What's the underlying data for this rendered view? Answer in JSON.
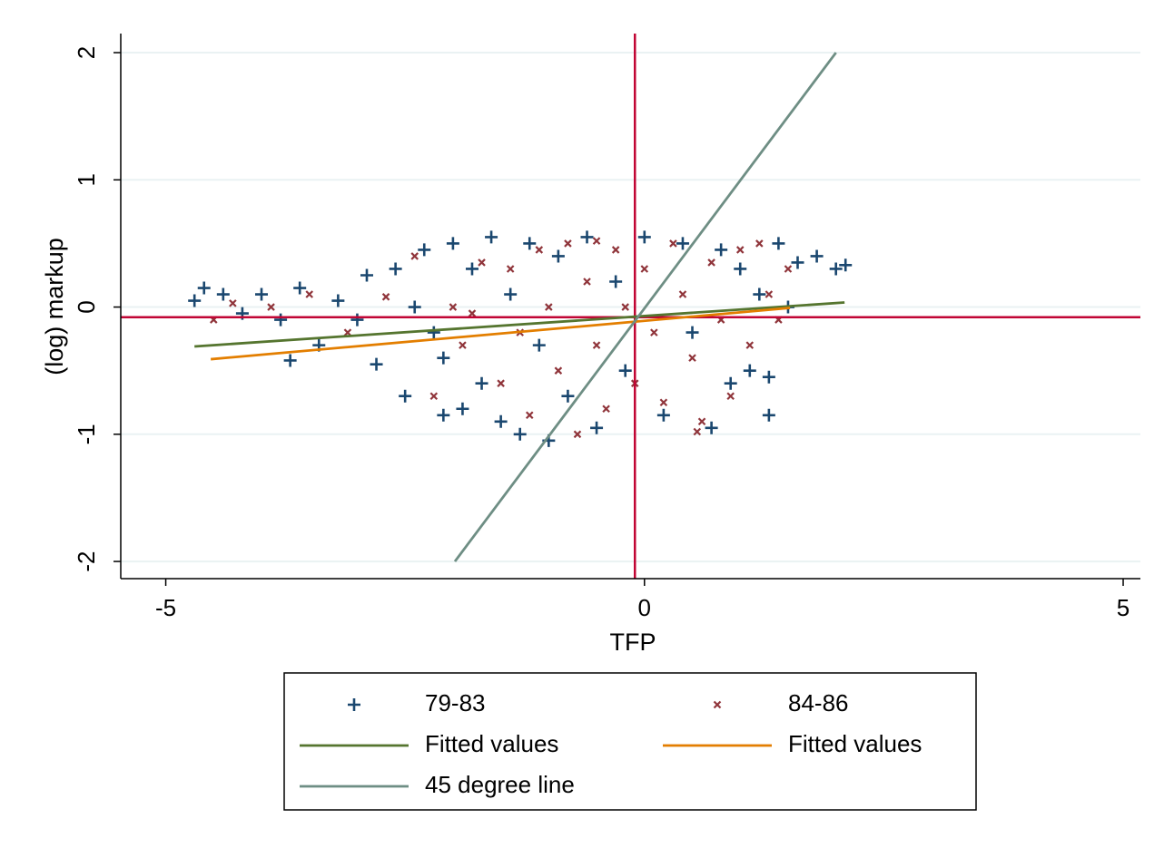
{
  "chart_data": {
    "type": "scatter",
    "x_label": "TFP",
    "y_label": "(log) markup",
    "xlim": [
      -5.47,
      5.18
    ],
    "ylim": [
      -2.135,
      2.15
    ],
    "xticks": [
      -5,
      0,
      5
    ],
    "yticks": [
      -2,
      -1,
      0,
      1,
      2
    ],
    "grid": true,
    "reference_lines": [
      {
        "axis": "x",
        "value": -0.1,
        "color": "#c10534"
      },
      {
        "axis": "y",
        "value": -0.08,
        "color": "#c10534"
      }
    ],
    "series": [
      {
        "name": "79-83",
        "marker": "plus",
        "color": "#1a476f",
        "x": [
          -4.7,
          -4.6,
          -4.4,
          -4.2,
          -4.0,
          -3.8,
          -3.6,
          -3.4,
          -3.2,
          -3.0,
          -2.9,
          -2.8,
          -2.6,
          -2.5,
          -2.4,
          -2.3,
          -2.2,
          -2.1,
          -2.0,
          -1.9,
          -1.8,
          -1.7,
          -1.6,
          -1.5,
          -1.4,
          -1.3,
          -1.2,
          -1.1,
          -1.0,
          -0.9,
          -0.8,
          -0.6,
          -0.5,
          -0.3,
          -0.2,
          0.0,
          0.2,
          0.4,
          0.5,
          0.7,
          0.8,
          0.9,
          1.0,
          1.1,
          1.2,
          1.3,
          1.3,
          1.4,
          1.5,
          1.6,
          1.8,
          2.0,
          2.1,
          -3.7,
          -2.1
        ],
        "values": [
          0.05,
          0.15,
          0.1,
          -0.05,
          0.1,
          -0.1,
          0.15,
          -0.3,
          0.05,
          -0.1,
          0.25,
          -0.45,
          0.3,
          -0.7,
          0.0,
          0.45,
          -0.2,
          -0.4,
          0.5,
          -0.8,
          0.3,
          -0.6,
          0.55,
          -0.9,
          0.1,
          -1.0,
          0.5,
          -0.3,
          -1.05,
          0.4,
          -0.7,
          0.55,
          -0.95,
          0.2,
          -0.5,
          0.55,
          -0.85,
          0.5,
          -0.2,
          -0.95,
          0.45,
          -0.6,
          0.3,
          -0.5,
          0.1,
          -0.55,
          -0.85,
          0.5,
          0.0,
          0.35,
          0.4,
          0.3,
          0.33,
          -0.42,
          -0.85
        ]
      },
      {
        "name": "84-86",
        "marker": "x",
        "color": "#90353b",
        "x": [
          -4.5,
          -4.3,
          -3.9,
          -3.5,
          -3.1,
          -2.7,
          -2.4,
          -2.2,
          -2.0,
          -1.9,
          -1.7,
          -1.5,
          -1.4,
          -1.3,
          -1.2,
          -1.1,
          -1.0,
          -0.9,
          -0.8,
          -0.7,
          -0.6,
          -0.5,
          -0.4,
          -0.3,
          -0.2,
          -0.1,
          0.0,
          0.1,
          0.2,
          0.3,
          0.4,
          0.5,
          0.6,
          0.7,
          0.8,
          0.9,
          1.0,
          1.1,
          1.2,
          1.3,
          1.4,
          1.5,
          0.55,
          -1.8,
          -0.5
        ],
        "values": [
          -0.1,
          0.03,
          0.0,
          0.1,
          -0.2,
          0.08,
          0.4,
          -0.7,
          0.0,
          -0.3,
          0.35,
          -0.6,
          0.3,
          -0.2,
          -0.85,
          0.45,
          0.0,
          -0.5,
          0.5,
          -1.0,
          0.2,
          -0.3,
          -0.8,
          0.45,
          0.0,
          -0.6,
          0.3,
          -0.2,
          -0.75,
          0.5,
          0.1,
          -0.4,
          -0.9,
          0.35,
          -0.1,
          -0.7,
          0.45,
          -0.3,
          0.5,
          0.1,
          -0.1,
          0.3,
          -0.98,
          -0.05,
          0.52
        ]
      },
      {
        "name": "Fitted values",
        "marker": "line",
        "color": "#55752f",
        "x": [
          -4.7,
          2.09
        ],
        "values": [
          -0.31,
          0.036
        ]
      },
      {
        "name": "Fitted values",
        "marker": "line",
        "color": "#e37e00",
        "x": [
          -4.53,
          1.52
        ],
        "values": [
          -0.41,
          -0.007
        ]
      },
      {
        "name": "45 degree line",
        "marker": "line",
        "color": "#6e8e84",
        "x": [
          -1.98,
          2.0
        ],
        "values": [
          -2,
          2
        ]
      }
    ]
  }
}
